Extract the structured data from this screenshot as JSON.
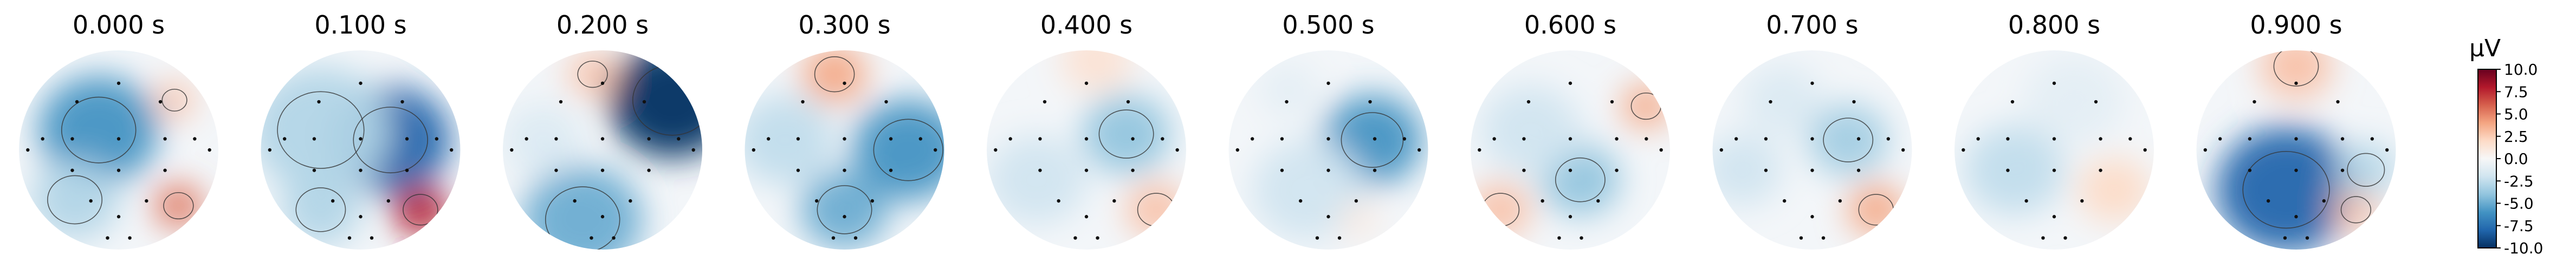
{
  "chart_data": {
    "type": "heatmap",
    "title": "",
    "colorbar": {
      "label": "µV",
      "ticks": [
        "10.0",
        "7.5",
        "5.0",
        "2.5",
        "0.0",
        "-2.5",
        "-5.0",
        "-7.5",
        "-10.0"
      ],
      "tick_values": [
        10.0,
        7.5,
        5.0,
        2.5,
        0.0,
        -2.5,
        -5.0,
        -7.5,
        -10.0
      ],
      "vmin": -10.0,
      "vmax": 10.0,
      "colormap": "RdBu_r",
      "stops": [
        "#053061",
        "#2166ac",
        "#4393c3",
        "#92c5de",
        "#d1e5f0",
        "#f7f7f7",
        "#fddbc7",
        "#f4a582",
        "#d6604d",
        "#b2182b",
        "#67001f"
      ]
    },
    "panels": [
      {
        "time": "0.000 s",
        "features": [
          {
            "x": 0.4,
            "y": 0.4,
            "v": -6.0,
            "r": 0.3
          },
          {
            "x": 0.28,
            "y": 0.75,
            "v": -3.0,
            "r": 0.22
          },
          {
            "x": 0.78,
            "y": 0.25,
            "v": 3.0,
            "r": 0.1
          },
          {
            "x": 0.8,
            "y": 0.78,
            "v": 5.5,
            "r": 0.12
          }
        ]
      },
      {
        "time": "0.100 s",
        "features": [
          {
            "x": 0.65,
            "y": 0.45,
            "v": -8.0,
            "r": 0.3
          },
          {
            "x": 0.3,
            "y": 0.4,
            "v": -3.0,
            "r": 0.35
          },
          {
            "x": 0.8,
            "y": 0.8,
            "v": 8.0,
            "r": 0.14
          },
          {
            "x": 0.3,
            "y": 0.8,
            "v": -3.0,
            "r": 0.2
          }
        ]
      },
      {
        "time": "0.200 s",
        "features": [
          {
            "x": 0.85,
            "y": 0.25,
            "v": -11.0,
            "r": 0.32
          },
          {
            "x": 0.45,
            "y": 0.12,
            "v": 3.0,
            "r": 0.12
          },
          {
            "x": 0.4,
            "y": 0.85,
            "v": -5.0,
            "r": 0.3
          },
          {
            "x": 0.2,
            "y": 0.45,
            "v": -1.5,
            "r": 0.2
          }
        ]
      },
      {
        "time": "0.300 s",
        "features": [
          {
            "x": 0.45,
            "y": 0.12,
            "v": 4.0,
            "r": 0.16
          },
          {
            "x": 0.82,
            "y": 0.5,
            "v": -6.0,
            "r": 0.28
          },
          {
            "x": 0.5,
            "y": 0.8,
            "v": -5.0,
            "r": 0.22
          },
          {
            "x": 0.2,
            "y": 0.45,
            "v": -2.5,
            "r": 0.25
          }
        ]
      },
      {
        "time": "0.400 s",
        "features": [
          {
            "x": 0.7,
            "y": 0.42,
            "v": -4.0,
            "r": 0.22
          },
          {
            "x": 0.85,
            "y": 0.8,
            "v": 3.0,
            "r": 0.15
          },
          {
            "x": 0.55,
            "y": 0.05,
            "v": 1.5,
            "r": 0.18
          },
          {
            "x": 0.25,
            "y": 0.65,
            "v": -2.0,
            "r": 0.25
          }
        ]
      },
      {
        "time": "0.500 s",
        "features": [
          {
            "x": 0.72,
            "y": 0.45,
            "v": -6.0,
            "r": 0.25
          },
          {
            "x": 0.4,
            "y": 0.7,
            "v": -2.0,
            "r": 0.28
          },
          {
            "x": 0.65,
            "y": 0.85,
            "v": 1.0,
            "r": 0.1
          },
          {
            "x": 0.3,
            "y": 0.2,
            "v": -1.0,
            "r": 0.15
          }
        ]
      },
      {
        "time": "0.600 s",
        "features": [
          {
            "x": 0.88,
            "y": 0.28,
            "v": 4.0,
            "r": 0.12
          },
          {
            "x": 0.55,
            "y": 0.65,
            "v": -4.0,
            "r": 0.2
          },
          {
            "x": 0.15,
            "y": 0.8,
            "v": 3.0,
            "r": 0.15
          },
          {
            "x": 0.3,
            "y": 0.4,
            "v": -2.0,
            "r": 0.25
          }
        ]
      },
      {
        "time": "0.700 s",
        "features": [
          {
            "x": 0.68,
            "y": 0.45,
            "v": -3.5,
            "r": 0.2
          },
          {
            "x": 0.82,
            "y": 0.8,
            "v": 4.0,
            "r": 0.14
          },
          {
            "x": 0.15,
            "y": 0.6,
            "v": -2.0,
            "r": 0.2
          },
          {
            "x": 0.35,
            "y": 0.25,
            "v": -1.5,
            "r": 0.2
          }
        ]
      },
      {
        "time": "0.800 s",
        "features": [
          {
            "x": 0.8,
            "y": 0.7,
            "v": 2.0,
            "r": 0.18
          },
          {
            "x": 0.3,
            "y": 0.6,
            "v": -2.5,
            "r": 0.25
          },
          {
            "x": 0.6,
            "y": 0.25,
            "v": -1.0,
            "r": 0.25
          }
        ]
      },
      {
        "time": "0.900 s",
        "features": [
          {
            "x": 0.45,
            "y": 0.7,
            "v": -8.0,
            "r": 0.35
          },
          {
            "x": 0.5,
            "y": 0.08,
            "v": 3.0,
            "r": 0.18
          },
          {
            "x": 0.8,
            "y": 0.8,
            "v": 3.0,
            "r": 0.12
          },
          {
            "x": 0.85,
            "y": 0.6,
            "v": -3.0,
            "r": 0.15
          }
        ]
      }
    ]
  }
}
